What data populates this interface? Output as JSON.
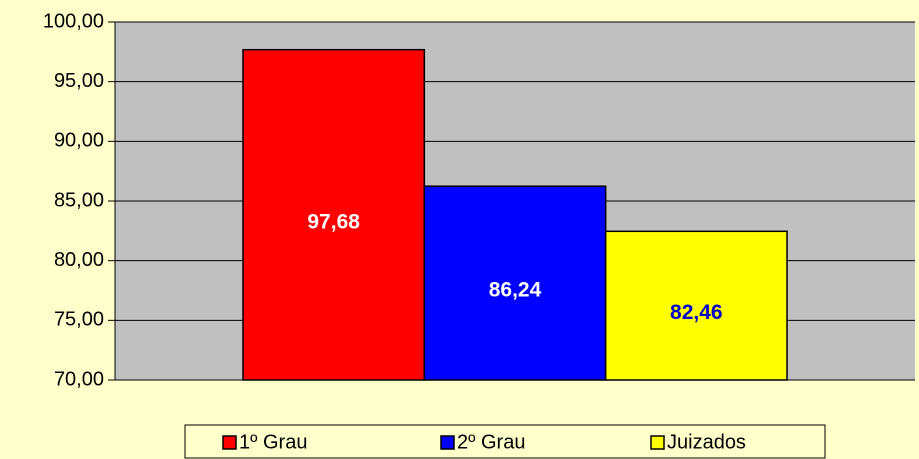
{
  "chart_data": {
    "type": "bar",
    "categories": [
      null
    ],
    "series": [
      {
        "name": "1º Grau",
        "color": "#ff0000",
        "label_color": "#ffffff",
        "values": [
          97.68
        ],
        "value_labels": [
          "97,68"
        ]
      },
      {
        "name": "2º Grau",
        "color": "#0000ff",
        "label_color": "#ffffff",
        "values": [
          86.24
        ],
        "value_labels": [
          "86,24"
        ]
      },
      {
        "name": "Juizados",
        "color": "#ffff00",
        "label_color": "#0000cc",
        "values": [
          82.46
        ],
        "value_labels": [
          "82,46"
        ]
      }
    ],
    "ylim": [
      70,
      100
    ],
    "yticks": [
      {
        "value": 70,
        "label": "70,00"
      },
      {
        "value": 75,
        "label": "75,00"
      },
      {
        "value": 80,
        "label": "80,00"
      },
      {
        "value": 85,
        "label": "85,00"
      },
      {
        "value": 90,
        "label": "90,00"
      },
      {
        "value": 95,
        "label": "95,00"
      },
      {
        "value": 100,
        "label": "100,00"
      }
    ],
    "grid": true,
    "legend": "bottom"
  }
}
